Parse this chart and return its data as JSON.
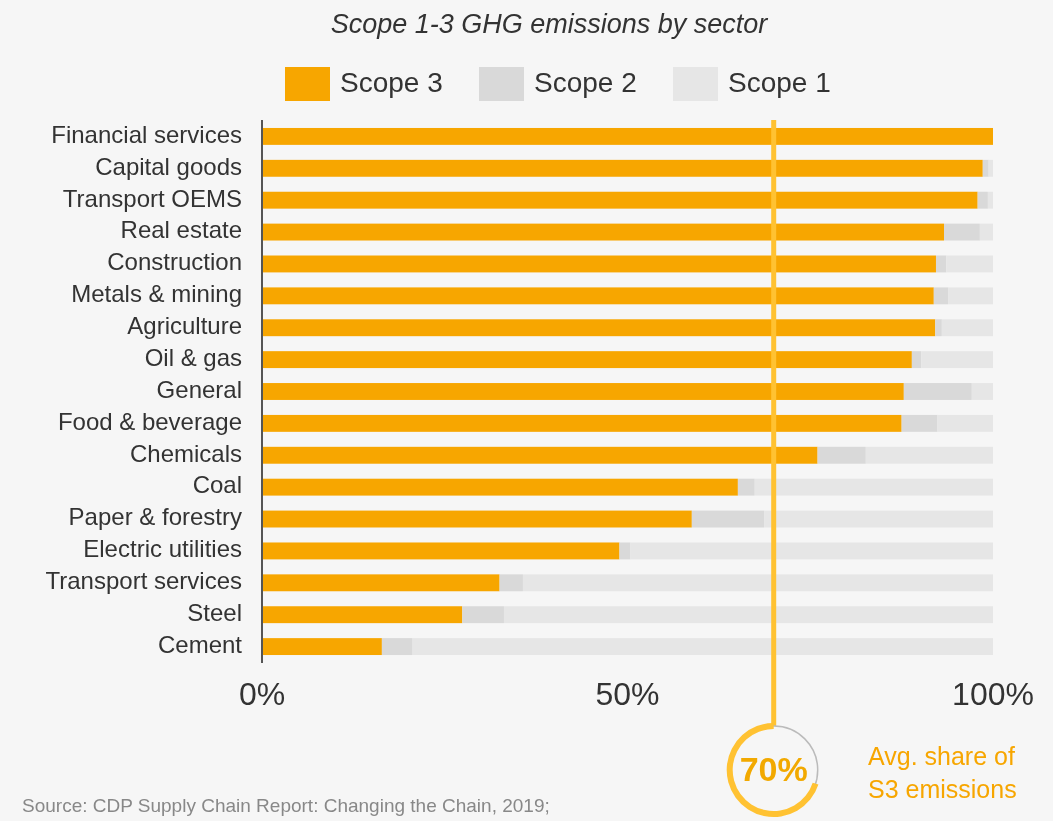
{
  "chart_data": {
    "type": "bar",
    "orientation": "horizontal",
    "stacked": true,
    "title": "Scope 1-3 GHG emissions by sector",
    "categories": [
      "Financial services",
      "Capital goods",
      "Transport OEMS",
      "Real estate",
      "Construction",
      "Metals & mining",
      "Agriculture",
      "Oil & gas",
      "General",
      "Food & beverage",
      "Chemicals",
      "Coal",
      "Paper & forestry",
      "Electric utilities",
      "Transport services",
      "Steel",
      "Cement"
    ],
    "series": [
      {
        "name": "Scope 3",
        "color": "#f7a600",
        "values": [
          100,
          98.6,
          97.9,
          93.3,
          92.2,
          91.9,
          92.1,
          88.9,
          87.8,
          87.5,
          76.0,
          65.1,
          58.8,
          48.9,
          32.5,
          27.4,
          16.4
        ]
      },
      {
        "name": "Scope 2",
        "color": "#d9d9d9",
        "values": [
          0,
          0.8,
          1.4,
          4.9,
          1.4,
          2.0,
          0.9,
          1.3,
          9.3,
          4.9,
          6.6,
          2.3,
          9.9,
          1.5,
          3.2,
          5.7,
          4.2
        ]
      },
      {
        "name": "Scope 1",
        "color": "#e6e6e6",
        "values": [
          0,
          0.6,
          0.7,
          1.8,
          6.4,
          6.1,
          7.0,
          9.8,
          2.9,
          7.6,
          17.4,
          32.6,
          31.3,
          49.6,
          64.3,
          66.9,
          79.4
        ]
      }
    ],
    "xlim": [
      0,
      100
    ],
    "xticks": [
      {
        "value": 0,
        "label": "0%"
      },
      {
        "value": 50,
        "label": "50%"
      },
      {
        "value": 100,
        "label": "100%"
      }
    ],
    "ref_lines": [
      {
        "axis": "x",
        "value": 70,
        "label": "70%",
        "color": "#ffc232"
      }
    ],
    "annotations": [
      "Avg. share of S3 emissions",
      "Source: CDP Supply Chain Report: Changing the Chain, 2019;"
    ],
    "legend": "top"
  }
}
